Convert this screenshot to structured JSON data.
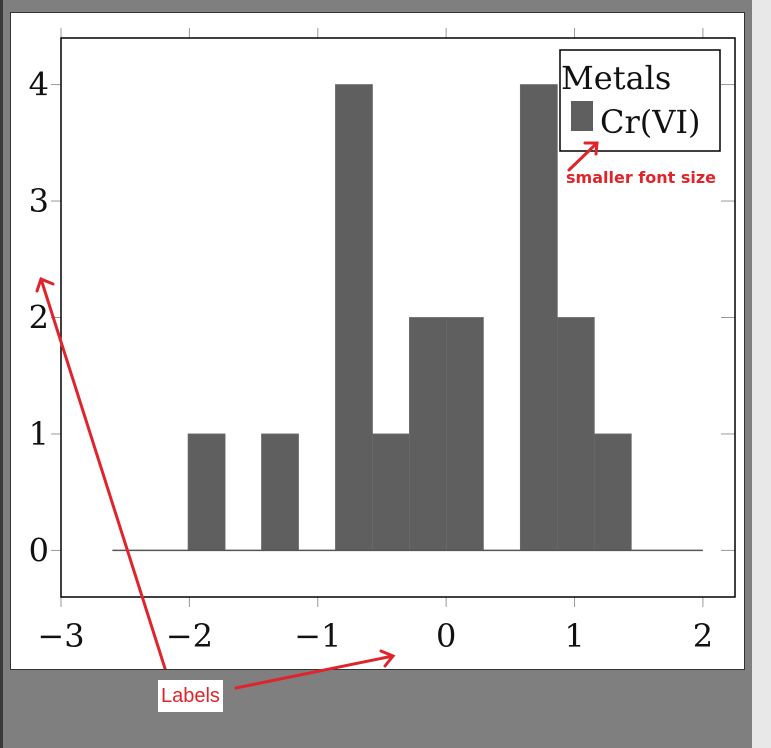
{
  "chart_data": {
    "type": "bar",
    "title": "",
    "xlabel": "",
    "ylabel": "",
    "xlim": [
      -3.0,
      2.25
    ],
    "ylim": [
      -0.4,
      4.4
    ],
    "xticks": [
      "−3",
      "−2",
      "−1",
      "0",
      "1",
      "2"
    ],
    "xtick_values": [
      -3,
      -2,
      -1,
      0,
      1,
      2
    ],
    "yticks": [
      "0",
      "1",
      "2",
      "3",
      "4"
    ],
    "ytick_values": [
      0,
      1,
      2,
      3,
      4
    ],
    "baseline": [
      -2.6,
      2.0
    ],
    "bin_width": 0.288,
    "bins": [
      {
        "x0": -2.01,
        "value": 1
      },
      {
        "x0": -1.438,
        "value": 1
      },
      {
        "x0": -0.862,
        "value": 4
      },
      {
        "x0": -0.574,
        "value": 1
      },
      {
        "x0": -0.286,
        "value": 2
      },
      {
        "x0": 0.002,
        "value": 2
      },
      {
        "x0": 0.578,
        "value": 4
      },
      {
        "x0": 0.866,
        "value": 2
      },
      {
        "x0": 1.154,
        "value": 1
      }
    ],
    "legend": {
      "title": "Metals",
      "entries": [
        "Cr(VI)"
      ],
      "position": "top-right"
    },
    "bar_color": "#5f5f5f"
  },
  "annotations": {
    "legend_note": "smaller font size",
    "labels_note": "Labels",
    "color": "#e0242b"
  }
}
